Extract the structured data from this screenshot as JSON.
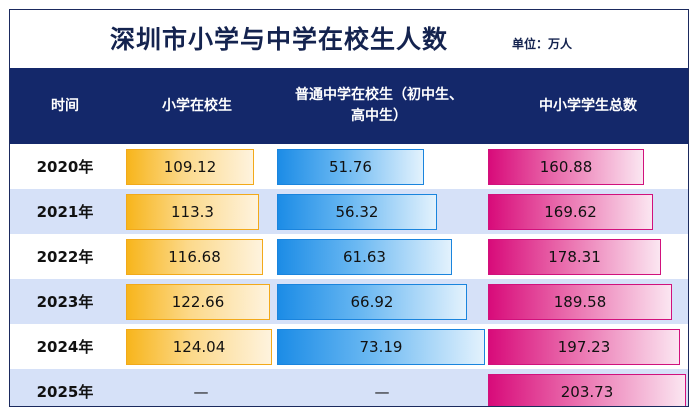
{
  "title": "深圳市小学与中学在校生人数",
  "unit_label": "单位：万人",
  "headers": {
    "time": "时间",
    "primary": "小学在校生",
    "secondary_line1": "普通中学在校生（初中生、",
    "secondary_line2": "高中生）",
    "total": "中小学学生总数"
  },
  "chart_data": {
    "type": "table",
    "title": "深圳市小学与中学在校生人数",
    "unit": "万人",
    "categories": [
      "2020年",
      "2021年",
      "2022年",
      "2023年",
      "2024年",
      "2025年"
    ],
    "series": [
      {
        "name": "小学在校生",
        "values": [
          109.12,
          113.3,
          116.68,
          122.66,
          124.04,
          null
        ]
      },
      {
        "name": "普通中学在校生（初中生、高中生）",
        "values": [
          51.76,
          56.32,
          61.63,
          66.92,
          73.19,
          null
        ]
      },
      {
        "name": "中小学学生总数",
        "values": [
          160.88,
          169.62,
          178.31,
          189.58,
          197.23,
          203.73
        ]
      }
    ],
    "missing_label": "—",
    "colors": {
      "primary": "#f7b51c",
      "secondary": "#1c8ce6",
      "total": "#d80b7a",
      "header": "#14286a",
      "alt_row": "#d6e1f8"
    }
  },
  "rows": [
    {
      "year": "2020年",
      "primary": "109.12",
      "secondary": "51.76",
      "total": "160.88"
    },
    {
      "year": "2021年",
      "primary": "113.3",
      "secondary": "56.32",
      "total": "169.62"
    },
    {
      "year": "2022年",
      "primary": "116.68",
      "secondary": "61.63",
      "total": "178.31"
    },
    {
      "year": "2023年",
      "primary": "122.66",
      "secondary": "66.92",
      "total": "189.58"
    },
    {
      "year": "2024年",
      "primary": "124.04",
      "secondary": "73.19",
      "total": "197.23"
    },
    {
      "year": "2025年",
      "primary": "—",
      "secondary": "—",
      "total": "203.73"
    }
  ]
}
